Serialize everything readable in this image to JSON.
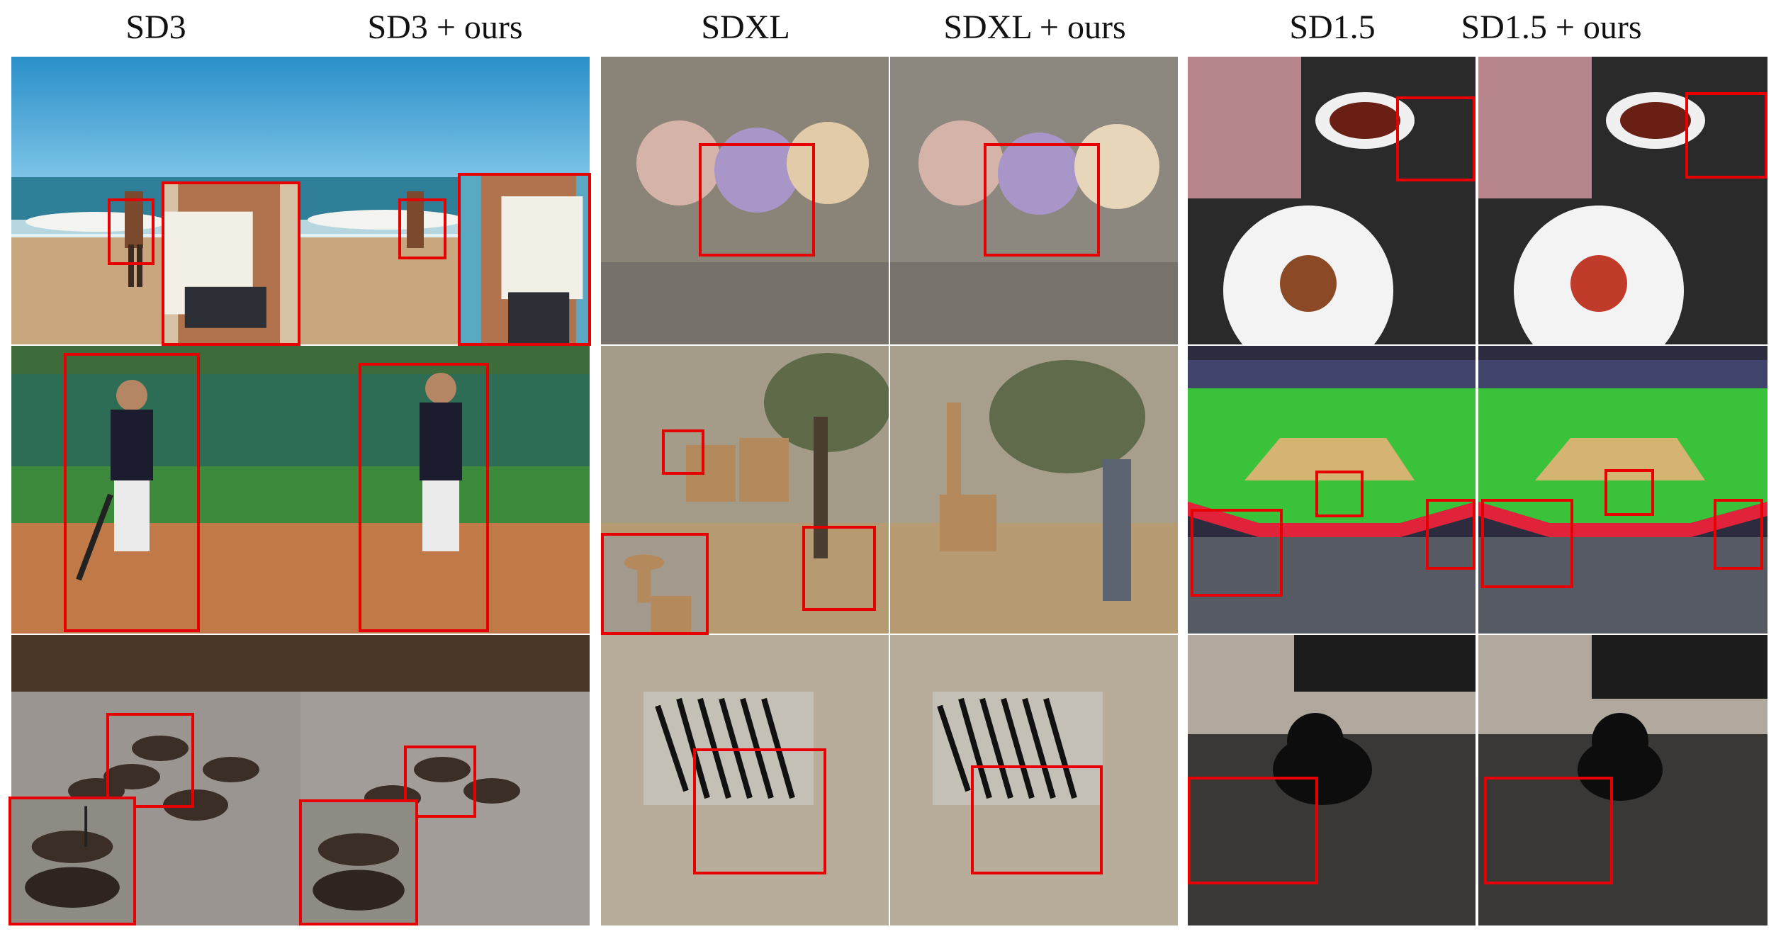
{
  "columns": [
    {
      "title": "SD3"
    },
    {
      "title": "SD3 + ours"
    },
    {
      "title": "SDXL"
    },
    {
      "title": "SDXL + ours"
    },
    {
      "title": "SD1.5"
    },
    {
      "title": "SD1.5 + ours"
    }
  ],
  "rows": {
    "sd3": [
      "beach surfer",
      "baseball player",
      "incense bowls"
    ],
    "sdxl": [
      "teddy bears",
      "giraffes",
      "zebras"
    ],
    "sd15": [
      "food plate",
      "baseball stadium",
      "black cat"
    ]
  },
  "colors": {
    "highlight_box": "#e60000"
  }
}
